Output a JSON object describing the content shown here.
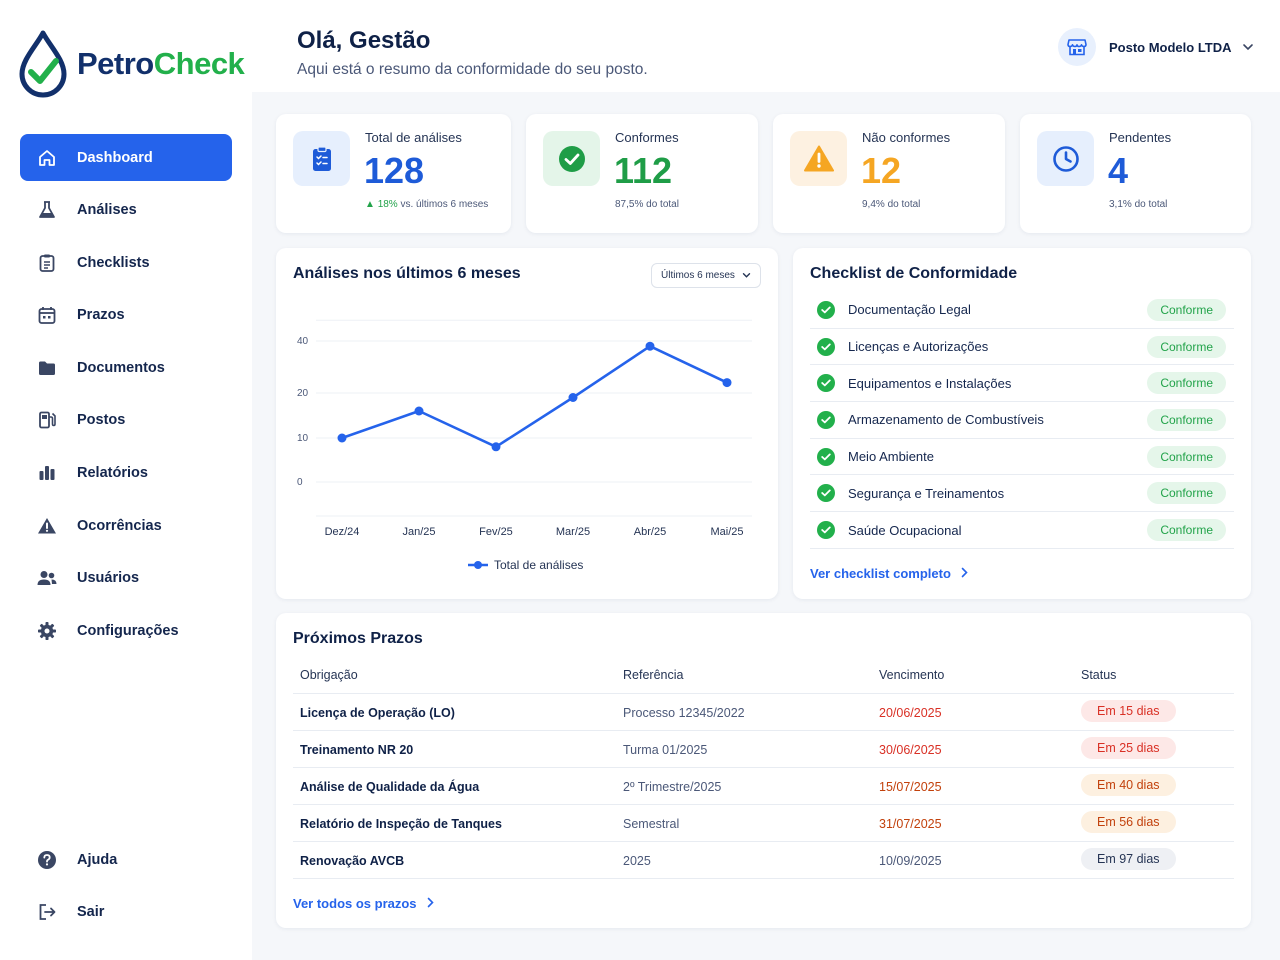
{
  "brand": {
    "name_part1": "Petro",
    "name_part2": "Check"
  },
  "sidebar": {
    "items": [
      {
        "label": "Dashboard",
        "icon": "home-icon",
        "active": true
      },
      {
        "label": "Análises",
        "icon": "flask-icon"
      },
      {
        "label": "Checklists",
        "icon": "clipboard-icon"
      },
      {
        "label": "Prazos",
        "icon": "calendar-icon"
      },
      {
        "label": "Documentos",
        "icon": "folder-icon"
      },
      {
        "label": "Postos",
        "icon": "fuel-pump-icon"
      },
      {
        "label": "Relatórios",
        "icon": "bar-chart-icon"
      },
      {
        "label": "Ocorrências",
        "icon": "warning-icon"
      },
      {
        "label": "Usuários",
        "icon": "users-icon"
      },
      {
        "label": "Configurações",
        "icon": "gear-icon"
      }
    ],
    "bottom": [
      {
        "label": "Ajuda",
        "icon": "help-icon"
      },
      {
        "label": "Sair",
        "icon": "logout-icon"
      }
    ]
  },
  "header": {
    "title": "Olá, Gestão",
    "subtitle": "Aqui está o resumo da conformidade do seu posto.",
    "station": "Posto Modelo LTDA"
  },
  "stats": [
    {
      "label": "Total de análises",
      "value": "128",
      "trend": "18%",
      "sub": " vs. últimos 6 meses",
      "color": "#1e5bd8",
      "icon": "clipboard-icon"
    },
    {
      "label": "Conformes",
      "value": "112",
      "sub": "87,5% do total",
      "color": "#1f9d47",
      "icon": "check-circle-icon"
    },
    {
      "label": "Não conformes",
      "value": "12",
      "sub": "9,4% do total",
      "color": "#f5a623",
      "icon": "warning-icon"
    },
    {
      "label": "Pendentes",
      "value": "4",
      "sub": "3,1% do total",
      "color": "#1e5bd8",
      "icon": "clock-icon"
    }
  ],
  "chart_card": {
    "title": "Análises nos últimos 6 meses",
    "period": "Últimos 6 meses"
  },
  "chart_data": {
    "type": "line",
    "categories": [
      "Dez/24",
      "Jan/25",
      "Fev/25",
      "Mar/25",
      "Abr/25",
      "Mai/25"
    ],
    "series": [
      {
        "name": "Total de análises",
        "values": [
          10,
          16,
          8,
          19,
          38,
          24
        ],
        "color": "#2563eb"
      }
    ],
    "yticks": [
      0,
      10,
      20,
      40
    ],
    "grid": true,
    "legend": "bottom"
  },
  "checklist": {
    "title": "Checklist de Conformidade",
    "items": [
      {
        "label": "Documentação Legal",
        "status": "Conforme"
      },
      {
        "label": "Licenças e Autorizações",
        "status": "Conforme"
      },
      {
        "label": "Equipamentos e Instalações",
        "status": "Conforme"
      },
      {
        "label": "Armazenamento de Combustíveis",
        "status": "Conforme"
      },
      {
        "label": "Meio Ambiente",
        "status": "Conforme"
      },
      {
        "label": "Segurança e Treinamentos",
        "status": "Conforme"
      },
      {
        "label": "Saúde Ocupacional",
        "status": "Conforme"
      }
    ],
    "link": "Ver checklist completo"
  },
  "deadlines": {
    "title": "Próximos Prazos",
    "columns": [
      "Obrigação",
      "Referência",
      "Vencimento",
      "Status"
    ],
    "rows": [
      {
        "obligation": "Licença de Operação (LO)",
        "reference": "Processo 12345/2022",
        "due": "20/06/2025",
        "status": "Em 15 dias",
        "level": "red"
      },
      {
        "obligation": "Treinamento NR 20",
        "reference": "Turma 01/2025",
        "due": "30/06/2025",
        "status": "Em 25 dias",
        "level": "red"
      },
      {
        "obligation": "Análise de Qualidade da Água",
        "reference": "2º Trimestre/2025",
        "due": "15/07/2025",
        "status": "Em 40 dias",
        "level": "orange"
      },
      {
        "obligation": "Relatório de Inspeção de Tanques",
        "reference": "Semestral",
        "due": "31/07/2025",
        "status": "Em 56 dias",
        "level": "orange"
      },
      {
        "obligation": "Renovação AVCB",
        "reference": "2025",
        "due": "10/09/2025",
        "status": "Em 97 dias",
        "level": "gray"
      }
    ],
    "link": "Ver todos os prazos"
  }
}
